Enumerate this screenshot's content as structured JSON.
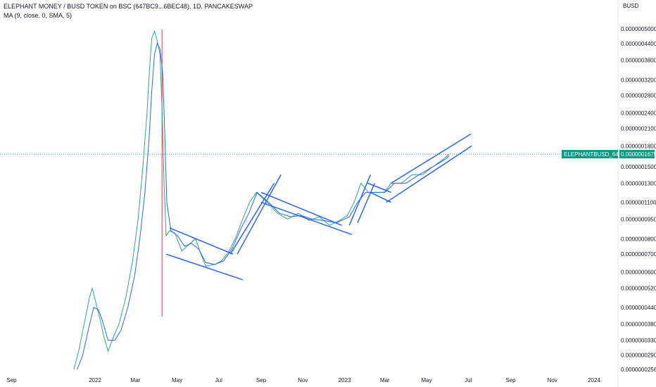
{
  "header": {
    "title": "ELEPHANT MONEY / BUSD TOKEN on BSC (647BC9...6BEC48), 1D, PANCAKESWAP",
    "indicator": "MA (9, close, 0, SMA, 5)",
    "currency": "BUSD"
  },
  "chart_data": {
    "type": "line",
    "scale": "log",
    "y_ticks": [
      "0.0000005000",
      "0.0000004400",
      "0.0000003800",
      "0.0000003200",
      "0.0000002800",
      "0.0000002400",
      "0.0000002100",
      "0.0000001800",
      "0.0000001500",
      "0.0000001300",
      "0.0000001100",
      "0.0000000950",
      "0.0000000800",
      "0.0000000700",
      "0.0000000600",
      "0.0000000520",
      "0.0000000440",
      "0.0000000380",
      "0.0000000330",
      "0.0000000290",
      "0.0000000256"
    ],
    "x_ticks": [
      "Sep",
      "2022",
      "Mar",
      "May",
      "Jul",
      "Sep",
      "Nov",
      "2023",
      "Mar",
      "May",
      "Jul",
      "Sep",
      "Nov",
      "2024"
    ],
    "last_price": {
      "symbol": "ELEPHANTBUSD_647BC9",
      "value": "0.0000001675",
      "color": "#089981"
    },
    "series": [
      {
        "name": "ELEPHANTBUSD_647BC9",
        "color": "#26a69a",
        "points": [
          [
            "2021-12-01",
            2.56e-08
          ],
          [
            "2021-12-08",
            3e-08
          ],
          [
            "2021-12-16",
            3.8e-08
          ],
          [
            "2021-12-24",
            4.8e-08
          ],
          [
            "2021-12-28",
            5.2e-08
          ],
          [
            "2022-01-02",
            4.6e-08
          ],
          [
            "2022-01-08",
            4e-08
          ],
          [
            "2022-01-14",
            3.4e-08
          ],
          [
            "2022-01-20",
            3e-08
          ],
          [
            "2022-01-28",
            3.4e-08
          ],
          [
            "2022-02-05",
            3.8e-08
          ],
          [
            "2022-02-15",
            4.8e-08
          ],
          [
            "2022-02-25",
            6.6e-08
          ],
          [
            "2022-03-05",
            9.5e-08
          ],
          [
            "2022-03-12",
            1.5e-07
          ],
          [
            "2022-03-18",
            2.4e-07
          ],
          [
            "2022-03-22",
            3.6e-07
          ],
          [
            "2022-03-25",
            4.6e-07
          ],
          [
            "2022-03-29",
            4.9e-07
          ],
          [
            "2022-04-02",
            4.5e-07
          ],
          [
            "2022-04-06",
            4e-07
          ],
          [
            "2022-04-09",
            2.5e-07
          ],
          [
            "2022-04-12",
            1.3e-07
          ],
          [
            "2022-04-15",
            8.2e-08
          ],
          [
            "2022-04-20",
            8.6e-08
          ],
          [
            "2022-04-28",
            8.4e-08
          ],
          [
            "2022-05-08",
            7.2e-08
          ],
          [
            "2022-05-18",
            7.6e-08
          ],
          [
            "2022-05-28",
            8e-08
          ],
          [
            "2022-06-05",
            7e-08
          ],
          [
            "2022-06-12",
            6.3e-08
          ],
          [
            "2022-06-25",
            6.4e-08
          ],
          [
            "2022-07-05",
            6.6e-08
          ],
          [
            "2022-07-15",
            7.1e-08
          ],
          [
            "2022-07-25",
            8e-08
          ],
          [
            "2022-08-05",
            9.5e-08
          ],
          [
            "2022-08-15",
            1.1e-07
          ],
          [
            "2022-08-25",
            1.2e-07
          ],
          [
            "2022-09-10",
            1.1e-07
          ],
          [
            "2022-09-25",
            1e-07
          ],
          [
            "2022-10-10",
            9.5e-08
          ],
          [
            "2022-10-25",
            1e-07
          ],
          [
            "2022-11-10",
            9.4e-08
          ],
          [
            "2022-11-25",
            9.7e-08
          ],
          [
            "2022-12-10",
            9e-08
          ],
          [
            "2022-12-25",
            9.4e-08
          ],
          [
            "2023-01-05",
            9.8e-08
          ],
          [
            "2023-01-15",
            1.1e-07
          ],
          [
            "2023-01-25",
            1.3e-07
          ],
          [
            "2023-02-05",
            1.2e-07
          ],
          [
            "2023-02-15",
            1.2e-07
          ],
          [
            "2023-02-28",
            1.2e-07
          ],
          [
            "2023-03-10",
            1.3e-07
          ],
          [
            "2023-03-25",
            1.3e-07
          ],
          [
            "2023-04-10",
            1.4e-07
          ],
          [
            "2023-04-25",
            1.4e-07
          ],
          [
            "2023-05-10",
            1.5e-07
          ],
          [
            "2023-05-25",
            1.6e-07
          ],
          [
            "2023-06-03",
            1.675e-07
          ]
        ]
      },
      {
        "name": "MA (9, close, 0, SMA, 5)",
        "color": "#2962ff",
        "points": [
          [
            "2021-12-06",
            2.56e-08
          ],
          [
            "2021-12-14",
            2.9e-08
          ],
          [
            "2021-12-22",
            3.6e-08
          ],
          [
            "2021-12-30",
            4.4e-08
          ],
          [
            "2022-01-06",
            4.3e-08
          ],
          [
            "2022-01-12",
            3.9e-08
          ],
          [
            "2022-01-20",
            3.3e-08
          ],
          [
            "2022-01-30",
            3.3e-08
          ],
          [
            "2022-02-08",
            3.6e-08
          ],
          [
            "2022-02-18",
            4.4e-08
          ],
          [
            "2022-02-28",
            5.8e-08
          ],
          [
            "2022-03-08",
            8.2e-08
          ],
          [
            "2022-03-15",
            1.2e-07
          ],
          [
            "2022-03-21",
            1.9e-07
          ],
          [
            "2022-03-25",
            2.9e-07
          ],
          [
            "2022-03-29",
            4e-07
          ],
          [
            "2022-04-02",
            4.4e-07
          ],
          [
            "2022-04-06",
            4.2e-07
          ],
          [
            "2022-04-10",
            3.4e-07
          ],
          [
            "2022-04-13",
            2e-07
          ],
          [
            "2022-04-16",
            1.1e-07
          ],
          [
            "2022-04-22",
            8.6e-08
          ],
          [
            "2022-05-02",
            8.2e-08
          ],
          [
            "2022-05-12",
            7.5e-08
          ],
          [
            "2022-05-22",
            7.7e-08
          ],
          [
            "2022-06-02",
            7.3e-08
          ],
          [
            "2022-06-12",
            6.5e-08
          ],
          [
            "2022-06-25",
            6.4e-08
          ],
          [
            "2022-07-08",
            6.6e-08
          ],
          [
            "2022-07-20",
            7.3e-08
          ],
          [
            "2022-08-02",
            8.7e-08
          ],
          [
            "2022-08-14",
            1e-07
          ],
          [
            "2022-08-26",
            1.2e-07
          ],
          [
            "2022-09-12",
            1.1e-07
          ],
          [
            "2022-09-28",
            1e-07
          ],
          [
            "2022-10-14",
            9.7e-08
          ],
          [
            "2022-10-30",
            9.8e-08
          ],
          [
            "2022-11-15",
            9.5e-08
          ],
          [
            "2022-12-01",
            9.4e-08
          ],
          [
            "2022-12-20",
            9.2e-08
          ],
          [
            "2023-01-08",
            9.7e-08
          ],
          [
            "2023-01-20",
            1.1e-07
          ],
          [
            "2023-02-01",
            1.2e-07
          ],
          [
            "2023-02-15",
            1.2e-07
          ],
          [
            "2023-03-01",
            1.2e-07
          ],
          [
            "2023-03-15",
            1.3e-07
          ],
          [
            "2023-04-01",
            1.3e-07
          ],
          [
            "2023-04-20",
            1.4e-07
          ],
          [
            "2023-05-10",
            1.5e-07
          ],
          [
            "2023-05-28",
            1.6e-07
          ],
          [
            "2023-06-03",
            1.65e-07
          ]
        ]
      }
    ],
    "trendlines": [
      [
        [
          "2022-04-20",
          8.8e-08
        ],
        [
          "2022-07-22",
          7e-08
        ]
      ],
      [
        [
          "2022-04-15",
          7e-08
        ],
        [
          "2022-08-05",
          5.6e-08
        ]
      ],
      [
        [
          "2022-07-18",
          7e-08
        ],
        [
          "2022-09-20",
          1.3e-07
        ]
      ],
      [
        [
          "2022-07-28",
          7e-08
        ],
        [
          "2022-09-30",
          1.4e-07
        ]
      ],
      [
        [
          "2022-09-01",
          1.2e-07
        ],
        [
          "2022-12-28",
          9e-08
        ]
      ],
      [
        [
          "2022-09-01",
          1.1e-07
        ],
        [
          "2023-01-12",
          8.3e-08
        ]
      ],
      [
        [
          "2023-01-08",
          9e-08
        ],
        [
          "2023-02-08",
          1.4e-07
        ]
      ],
      [
        [
          "2023-01-20",
          9.2e-08
        ],
        [
          "2023-02-14",
          1.3e-07
        ]
      ],
      [
        [
          "2023-02-04",
          1.3e-07
        ],
        [
          "2023-03-10",
          1.2e-07
        ]
      ],
      [
        [
          "2023-02-08",
          1.2e-07
        ],
        [
          "2023-03-10",
          1.1e-07
        ]
      ],
      [
        [
          "2023-03-10",
          1.3e-07
        ],
        [
          "2023-07-05",
          2e-07
        ]
      ],
      [
        [
          "2023-03-03",
          1.1e-07
        ],
        [
          "2023-07-06",
          1.8e-07
        ]
      ]
    ],
    "event_line_date": "2022-04-09",
    "event_line_color": "#f23645",
    "price_line_color": "#26a69a"
  }
}
